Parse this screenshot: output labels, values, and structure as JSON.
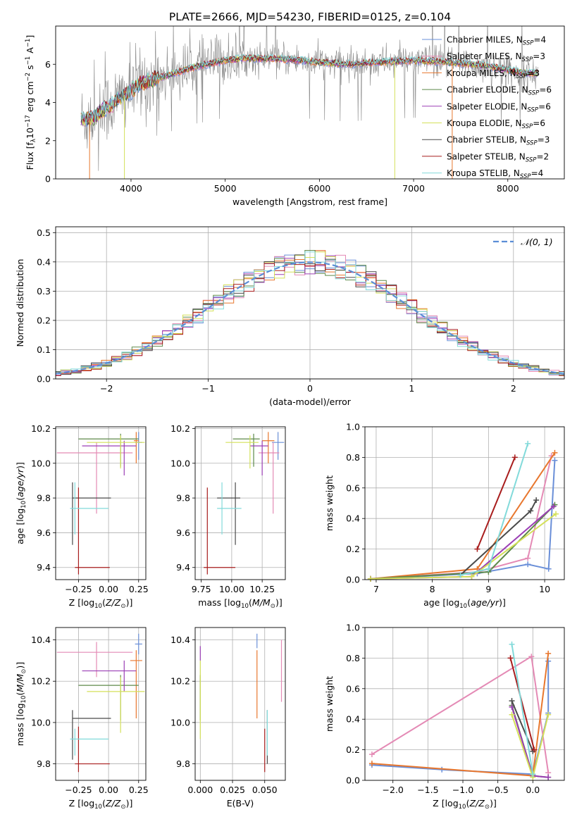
{
  "figure": {
    "title": "PLATE=2666, MJD=54230, FIBERID=0125, z=0.104"
  },
  "colors": {
    "Chabrier MILES": "#6a8fd8",
    "Salpeter MILES": "#e48ab5",
    "Kroupa MILES": "#e8772e",
    "Chabrier ELODIE": "#5e8a4a",
    "Salpeter ELODIE": "#9b3fb5",
    "Kroupa ELODIE": "#d4e05a",
    "Chabrier STELIB": "#4a4a4a",
    "Salpeter STELIB": "#a81d1d",
    "Kroupa STELIB": "#82dada",
    "data": "#888888",
    "normal": "#5b8ed6"
  },
  "chart_data": [
    {
      "id": "spectrum",
      "type": "line",
      "xlabel": "wavelength [Angstrom, rest frame]",
      "ylabel": "Flux [f_λ10^-17 erg cm^-2 s^-1 A^-1]",
      "xlim": [
        3200,
        8600
      ],
      "ylim": [
        0,
        8
      ],
      "xticks": [
        "4000",
        "5000",
        "6000",
        "7000",
        "8000"
      ],
      "yticks": [
        "0",
        "2",
        "4",
        "6"
      ],
      "legend_position": "top-right",
      "legend": [
        {
          "label": "Chabrier MILES, N",
          "nssp": "=4",
          "model": "Chabrier MILES"
        },
        {
          "label": "Salpeter MILES, N",
          "nssp": "=3",
          "model": "Salpeter MILES"
        },
        {
          "label": "Kroupa MILES, N",
          "nssp": "=3",
          "model": "Kroupa MILES"
        },
        {
          "label": "Chabrier ELODIE, N",
          "nssp": "=6",
          "model": "Chabrier ELODIE"
        },
        {
          "label": "Salpeter ELODIE, N",
          "nssp": "=6",
          "model": "Salpeter ELODIE"
        },
        {
          "label": "Kroupa ELODIE, N",
          "nssp": "=6",
          "model": "Kroupa ELODIE"
        },
        {
          "label": "Chabrier STELIB, N",
          "nssp": "=3",
          "model": "Chabrier STELIB"
        },
        {
          "label": "Salpeter STELIB, N",
          "nssp": "=2",
          "model": "Salpeter STELIB"
        },
        {
          "label": "Kroupa STELIB, N",
          "nssp": "=4",
          "model": "Kroupa STELIB"
        }
      ],
      "continuum": [
        [
          3470,
          3.1
        ],
        [
          3600,
          3.2
        ],
        [
          3700,
          3.6
        ],
        [
          3800,
          3.9
        ],
        [
          3900,
          4.3
        ],
        [
          4000,
          4.6
        ],
        [
          4100,
          5.0
        ],
        [
          4300,
          5.3
        ],
        [
          4500,
          5.6
        ],
        [
          4700,
          5.9
        ],
        [
          5000,
          6.2
        ],
        [
          5200,
          6.3
        ],
        [
          5500,
          6.3
        ],
        [
          5800,
          6.2
        ],
        [
          6000,
          6.1
        ],
        [
          6300,
          6.0
        ],
        [
          6600,
          6.1
        ],
        [
          7000,
          6.2
        ],
        [
          7400,
          6.1
        ],
        [
          7800,
          5.9
        ],
        [
          8100,
          5.6
        ],
        [
          8300,
          5.5
        ]
      ]
    },
    {
      "id": "residuals",
      "type": "histogram",
      "xlabel": "(data-model)/error",
      "ylabel": "Normed distribution",
      "xlim": [
        -2.5,
        2.5
      ],
      "ylim": [
        0,
        0.52
      ],
      "xticks": [
        "−2",
        "−1",
        "0",
        "1",
        "2"
      ],
      "yticks": [
        "0.0",
        "0.1",
        "0.2",
        "0.3",
        "0.4",
        "0.5"
      ],
      "bin_width": 0.1,
      "legend": "𝒩(0, 1)",
      "legend_position": "top-right"
    },
    {
      "id": "age-vs-Z",
      "type": "errorbar",
      "xlabel": "Z [log10(Z/Z⊙)]",
      "ylabel": "age  [log10(age/yr)]",
      "xlim": [
        -0.44,
        0.31
      ],
      "ylim": [
        9.33,
        10.21
      ],
      "xticks": [
        -0.25,
        0.0,
        0.25
      ],
      "xtick_labels": [
        "−0.25",
        "0.00",
        "0.25"
      ],
      "yticks": [
        9.4,
        9.6,
        9.8,
        10.0,
        10.2
      ],
      "ytick_labels": [
        "9.4",
        "9.6",
        "9.8",
        "10.0",
        "10.2"
      ],
      "points": [
        {
          "model": "Chabrier MILES",
          "x": 0.25,
          "y": 10.12,
          "xerr": [
            0.03,
            0.03
          ],
          "yerr": [
            0.1,
            0.06
          ]
        },
        {
          "model": "Salpeter MILES",
          "x": -0.1,
          "y": 10.06,
          "xerr": [
            0.33,
            0.3
          ],
          "yerr": [
            0.35,
            0.06
          ]
        },
        {
          "model": "Kroupa MILES",
          "x": 0.23,
          "y": 10.13,
          "xerr": [
            0.02,
            0.02
          ],
          "yerr": [
            0.13,
            0.05
          ]
        },
        {
          "model": "Chabrier ELODIE",
          "x": 0.1,
          "y": 10.14,
          "xerr": [
            0.35,
            0.15
          ],
          "yerr": [
            0.16,
            0.03
          ]
        },
        {
          "model": "Salpeter ELODIE",
          "x": 0.13,
          "y": 10.1,
          "xerr": [
            0.35,
            0.1
          ],
          "yerr": [
            0.17,
            0.03
          ]
        },
        {
          "model": "Kroupa ELODIE",
          "x": 0.1,
          "y": 10.12,
          "xerr": [
            0.28,
            0.2
          ],
          "yerr": [
            0.15,
            0.04
          ]
        },
        {
          "model": "Chabrier STELIB",
          "x": -0.3,
          "y": 9.8,
          "xerr": [
            0.0,
            0.32
          ],
          "yerr": [
            0.27,
            0.09
          ]
        },
        {
          "model": "Salpeter STELIB",
          "x": -0.25,
          "y": 9.4,
          "xerr": [
            0.03,
            0.26
          ],
          "yerr": [
            0.04,
            0.46
          ]
        },
        {
          "model": "Kroupa STELIB",
          "x": -0.28,
          "y": 9.74,
          "xerr": [
            0.04,
            0.28
          ],
          "yerr": [
            0.15,
            0.15
          ]
        }
      ]
    },
    {
      "id": "age-vs-mass",
      "type": "errorbar",
      "xlabel": "mass [log10(M/M⊙)]",
      "ylabel": "",
      "xlim": [
        9.7,
        10.44
      ],
      "ylim": [
        9.33,
        10.21
      ],
      "xticks": [
        9.75,
        10.0,
        10.25
      ],
      "xtick_labels": [
        "9.75",
        "10.00",
        "10.25"
      ],
      "yticks": [
        9.4,
        9.6,
        9.8,
        10.0,
        10.2
      ],
      "ytick_labels": [
        "9.4",
        "9.6",
        "9.8",
        "10.0",
        "10.2"
      ],
      "points": [
        {
          "model": "Chabrier MILES",
          "x": 10.38,
          "y": 10.12,
          "xerr": [
            0.05,
            0.05
          ],
          "yerr": [
            0.1,
            0.06
          ]
        },
        {
          "model": "Salpeter MILES",
          "x": 10.34,
          "y": 10.06,
          "xerr": [
            0.12,
            0.05
          ],
          "yerr": [
            0.35,
            0.06
          ]
        },
        {
          "model": "Kroupa MILES",
          "x": 10.3,
          "y": 10.13,
          "xerr": [
            0.05,
            0.05
          ],
          "yerr": [
            0.13,
            0.05
          ]
        },
        {
          "model": "Chabrier ELODIE",
          "x": 10.18,
          "y": 10.14,
          "xerr": [
            0.17,
            0.05
          ],
          "yerr": [
            0.16,
            0.03
          ]
        },
        {
          "model": "Salpeter ELODIE",
          "x": 10.25,
          "y": 10.1,
          "xerr": [
            0.1,
            0.05
          ],
          "yerr": [
            0.17,
            0.03
          ]
        },
        {
          "model": "Kroupa ELODIE",
          "x": 10.15,
          "y": 10.12,
          "xerr": [
            0.2,
            0.07
          ],
          "yerr": [
            0.15,
            0.04
          ]
        },
        {
          "model": "Chabrier STELIB",
          "x": 10.03,
          "y": 9.8,
          "xerr": [
            0.15,
            0.04
          ],
          "yerr": [
            0.27,
            0.09
          ]
        },
        {
          "model": "Salpeter STELIB",
          "x": 9.8,
          "y": 9.4,
          "xerr": [
            0.03,
            0.23
          ],
          "yerr": [
            0.04,
            0.46
          ]
        },
        {
          "model": "Kroupa STELIB",
          "x": 9.92,
          "y": 9.74,
          "xerr": [
            0.04,
            0.16
          ],
          "yerr": [
            0.15,
            0.15
          ]
        }
      ]
    },
    {
      "id": "mass-weight-vs-age",
      "type": "line",
      "xlabel": "age  [log10(age/yr)]",
      "ylabel": "mass weight",
      "xlim": [
        6.8,
        10.35
      ],
      "ylim": [
        0,
        1
      ],
      "xticks": [
        7,
        8,
        9,
        10
      ],
      "xtick_labels": [
        "7",
        "8",
        "9",
        "10"
      ],
      "yticks": [
        0,
        0.2,
        0.4,
        0.6,
        0.8,
        1.0
      ],
      "ytick_labels": [
        "0.0",
        "0.2",
        "0.4",
        "0.6",
        "0.8",
        "1.0"
      ],
      "series": [
        {
          "model": "Chabrier MILES",
          "x": [
            6.9,
            8.8,
            9.7,
            10.07,
            10.18
          ],
          "y": [
            0.005,
            0.04,
            0.1,
            0.07,
            0.78
          ]
        },
        {
          "model": "Salpeter MILES",
          "x": [
            6.9,
            8.8,
            9.7,
            10.12
          ],
          "y": [
            0.005,
            0.05,
            0.14,
            0.81
          ]
        },
        {
          "model": "Kroupa MILES",
          "x": [
            6.9,
            8.8,
            10.18
          ],
          "y": [
            0.005,
            0.07,
            0.83
          ]
        },
        {
          "model": "Chabrier ELODIE",
          "x": [
            6.9,
            9.0,
            10.18
          ],
          "y": [
            0.005,
            0.05,
            0.49
          ]
        },
        {
          "model": "Salpeter ELODIE",
          "x": [
            6.9,
            8.7,
            10.16
          ],
          "y": [
            0.005,
            0.02,
            0.48
          ]
        },
        {
          "model": "Kroupa ELODIE",
          "x": [
            6.9,
            8.7,
            10.2
          ],
          "y": [
            0.005,
            0.02,
            0.43
          ]
        },
        {
          "model": "Chabrier STELIB",
          "x": [
            8.5,
            9.75,
            9.85
          ],
          "y": [
            0.03,
            0.45,
            0.52
          ]
        },
        {
          "model": "Salpeter STELIB",
          "x": [
            8.8,
            9.47
          ],
          "y": [
            0.2,
            0.8
          ]
        },
        {
          "model": "Kroupa STELIB",
          "x": [
            8.5,
            9.0,
            9.7
          ],
          "y": [
            0.03,
            0.07,
            0.89
          ]
        }
      ]
    },
    {
      "id": "mass-vs-Z",
      "type": "errorbar",
      "xlabel": "Z [log10(Z/Z⊙)]",
      "ylabel": "mass [log10(M/M⊙)]",
      "xlim": [
        -0.44,
        0.31
      ],
      "ylim": [
        9.72,
        10.46
      ],
      "xticks": [
        -0.25,
        0.0,
        0.25
      ],
      "xtick_labels": [
        "−0.25",
        "0.00",
        "0.25"
      ],
      "yticks": [
        9.8,
        10.0,
        10.2,
        10.4
      ],
      "ytick_labels": [
        "9.8",
        "10.0",
        "10.2",
        "10.4"
      ],
      "points": [
        {
          "model": "Chabrier MILES",
          "x": 0.25,
          "y": 10.38,
          "xerr": [
            0.03,
            0.03
          ],
          "yerr": [
            0.05,
            0.05
          ]
        },
        {
          "model": "Salpeter MILES",
          "x": -0.1,
          "y": 10.34,
          "xerr": [
            0.33,
            0.3
          ],
          "yerr": [
            0.12,
            0.05
          ]
        },
        {
          "model": "Kroupa MILES",
          "x": 0.23,
          "y": 10.3,
          "xerr": [
            0.05,
            0.05
          ],
          "yerr": [
            0.28,
            0.05
          ]
        },
        {
          "model": "Chabrier ELODIE",
          "x": 0.1,
          "y": 10.18,
          "xerr": [
            0.35,
            0.15
          ],
          "yerr": [
            0.17,
            0.05
          ]
        },
        {
          "model": "Salpeter ELODIE",
          "x": 0.13,
          "y": 10.25,
          "xerr": [
            0.35,
            0.1
          ],
          "yerr": [
            0.1,
            0.05
          ]
        },
        {
          "model": "Kroupa ELODIE",
          "x": 0.1,
          "y": 10.15,
          "xerr": [
            0.28,
            0.2
          ],
          "yerr": [
            0.2,
            0.07
          ]
        },
        {
          "model": "Chabrier STELIB",
          "x": -0.3,
          "y": 10.02,
          "xerr": [
            0.0,
            0.32
          ],
          "yerr": [
            0.2,
            0.04
          ]
        },
        {
          "model": "Salpeter STELIB",
          "x": -0.25,
          "y": 9.8,
          "xerr": [
            0.03,
            0.26
          ],
          "yerr": [
            0.04,
            0.18
          ]
        },
        {
          "model": "Kroupa STELIB",
          "x": -0.28,
          "y": 9.92,
          "xerr": [
            0.04,
            0.28
          ],
          "yerr": [
            0.08,
            0.05
          ]
        }
      ]
    },
    {
      "id": "mass-vs-EBV",
      "type": "errorbar",
      "xlabel": "E(B-V)",
      "ylabel": "",
      "xlim": [
        -0.004,
        0.066
      ],
      "ylim": [
        9.72,
        10.46
      ],
      "xticks": [
        0.0,
        0.025,
        0.05
      ],
      "xtick_labels": [
        "0.000",
        "0.025",
        "0.050"
      ],
      "yticks": [
        9.8,
        10.0,
        10.2,
        10.4
      ],
      "ytick_labels": [
        "9.8",
        "10.0",
        "10.2",
        "10.4"
      ],
      "points": [
        {
          "model": "Chabrier MILES",
          "x": 0.044,
          "y": 10.38,
          "xerr": [
            0,
            0
          ],
          "yerr": [
            0.02,
            0.05
          ]
        },
        {
          "model": "Salpeter MILES",
          "x": 0.063,
          "y": 10.3,
          "xerr": [
            0,
            0
          ],
          "yerr": [
            0.2,
            0.1
          ]
        },
        {
          "model": "Kroupa MILES",
          "x": 0.044,
          "y": 10.2,
          "xerr": [
            0,
            0
          ],
          "yerr": [
            0.18,
            0.15
          ]
        },
        {
          "model": "Chabrier ELODIE",
          "x": 0.0,
          "y": 10.18,
          "xerr": [
            0,
            0
          ],
          "yerr": [
            0.17,
            0.05
          ]
        },
        {
          "model": "Salpeter ELODIE",
          "x": 0.0,
          "y": 10.32,
          "xerr": [
            0,
            0
          ],
          "yerr": [
            0.02,
            0.05
          ]
        },
        {
          "model": "Kroupa ELODIE",
          "x": 0.0,
          "y": 10.1,
          "xerr": [
            0,
            0
          ],
          "yerr": [
            0.18,
            0.2
          ]
        },
        {
          "model": "Chabrier STELIB",
          "x": 0.052,
          "y": 9.95,
          "xerr": [
            0,
            0
          ],
          "yerr": [
            0.15,
            0.11
          ]
        },
        {
          "model": "Salpeter STELIB",
          "x": 0.05,
          "y": 9.87,
          "xerr": [
            0,
            0
          ],
          "yerr": [
            0.11,
            0.1
          ]
        },
        {
          "model": "Kroupa STELIB",
          "x": 0.052,
          "y": 9.92,
          "xerr": [
            0,
            0
          ],
          "yerr": [
            0.08,
            0.14
          ]
        }
      ]
    },
    {
      "id": "mass-weight-vs-Z",
      "type": "line",
      "xlabel": "Z [log10(Z/Z⊙)]",
      "ylabel": "mass weight",
      "xlim": [
        -2.4,
        0.45
      ],
      "ylim": [
        0,
        1
      ],
      "xticks": [
        -2.0,
        -1.5,
        -1.0,
        -0.5,
        0.0
      ],
      "xtick_labels": [
        "−2.0",
        "−1.5",
        "−1.0",
        "−0.5",
        "0.0"
      ],
      "yticks": [
        0,
        0.2,
        0.4,
        0.6,
        0.8,
        1.0
      ],
      "ytick_labels": [
        "0.0",
        "0.2",
        "0.4",
        "0.6",
        "0.8",
        "1.0"
      ],
      "series": [
        {
          "model": "Chabrier MILES",
          "x": [
            -2.3,
            -1.3,
            0.0,
            0.22,
            0.22
          ],
          "y": [
            0.1,
            0.07,
            0.04,
            0.44,
            0.78
          ]
        },
        {
          "model": "Salpeter MILES",
          "x": [
            -2.3,
            -0.02,
            0.22
          ],
          "y": [
            0.17,
            0.81,
            0.05
          ]
        },
        {
          "model": "Kroupa MILES",
          "x": [
            -2.3,
            0.0,
            0.22
          ],
          "y": [
            0.11,
            0.03,
            0.83
          ]
        },
        {
          "model": "Chabrier ELODIE",
          "x": [
            -0.3,
            0.0,
            0.22
          ],
          "y": [
            0.49,
            0.03,
            0.02
          ]
        },
        {
          "model": "Salpeter ELODIE",
          "x": [
            -0.3,
            0.0,
            0.22
          ],
          "y": [
            0.48,
            0.03,
            0.02
          ]
        },
        {
          "model": "Kroupa ELODIE",
          "x": [
            -0.3,
            0.0,
            0.22
          ],
          "y": [
            0.43,
            0.02,
            0.43
          ]
        },
        {
          "model": "Chabrier STELIB",
          "x": [
            -0.3,
            0.0
          ],
          "y": [
            0.52,
            0.19
          ]
        },
        {
          "model": "Salpeter STELIB",
          "x": [
            -0.32,
            0.02
          ],
          "y": [
            0.8,
            0.2
          ]
        },
        {
          "model": "Kroupa STELIB",
          "x": [
            -0.3,
            0.0
          ],
          "y": [
            0.89,
            0.04
          ]
        }
      ]
    }
  ]
}
